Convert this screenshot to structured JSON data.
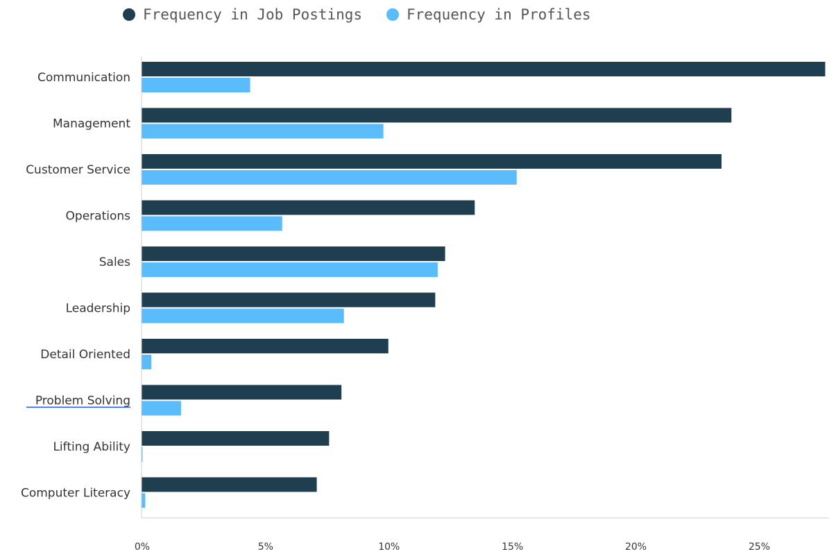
{
  "chart_data": {
    "type": "bar",
    "orientation": "horizontal",
    "categories": [
      "Communication",
      "Management",
      "Customer Service",
      "Operations",
      "Sales",
      "Leadership",
      "Detail Oriented",
      "Problem Solving",
      "Lifting Ability",
      "Computer Literacy"
    ],
    "series": [
      {
        "name": "Frequency in Job Postings",
        "color": "#1f3f50",
        "values": [
          27.7,
          23.9,
          23.5,
          13.5,
          12.3,
          11.9,
          10.0,
          8.1,
          7.6,
          7.1
        ]
      },
      {
        "name": "Frequency in Profiles",
        "color": "#5bbcfb",
        "values": [
          4.4,
          9.8,
          15.2,
          5.7,
          12.0,
          8.2,
          0.4,
          1.6,
          0.03,
          0.15
        ]
      }
    ],
    "xlim": [
      0,
      27.8
    ],
    "xticks": [
      0,
      5,
      10,
      15,
      20,
      25
    ],
    "xtick_labels": [
      "0%",
      "5%",
      "10%",
      "15%",
      "20%",
      "25%"
    ],
    "legend": "top-left",
    "grid": false,
    "annotation": "Problem Solving label underlined"
  }
}
